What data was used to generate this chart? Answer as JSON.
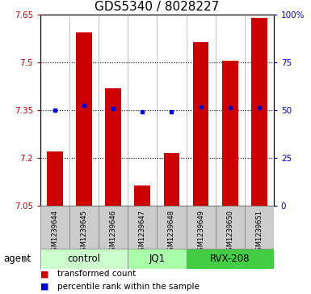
{
  "title": "GDS5340 / 8028227",
  "samples": [
    "GSM1239644",
    "GSM1239645",
    "GSM1239646",
    "GSM1239647",
    "GSM1239648",
    "GSM1239649",
    "GSM1239650",
    "GSM1239651"
  ],
  "bar_values": [
    7.22,
    7.595,
    7.42,
    7.115,
    7.215,
    7.565,
    7.505,
    7.64
  ],
  "percentile_values": [
    7.35,
    7.365,
    7.355,
    7.345,
    7.345,
    7.36,
    7.358,
    7.358
  ],
  "bar_color": "#cc0000",
  "percentile_color": "#0000cc",
  "ymin": 7.05,
  "ymax": 7.65,
  "yticks": [
    7.05,
    7.2,
    7.35,
    7.5,
    7.65
  ],
  "ytick_labels": [
    "7.05",
    "7.2",
    "7.35",
    "7.5",
    "7.65"
  ],
  "right_yticks": [
    0,
    25,
    50,
    75,
    100
  ],
  "right_ytick_labels": [
    "0",
    "25",
    "50",
    "75",
    "100%"
  ],
  "groups": [
    {
      "label": "control",
      "indices": [
        0,
        1,
        2
      ],
      "color": "#ccffcc"
    },
    {
      "label": "JQ1",
      "indices": [
        3,
        4
      ],
      "color": "#aaffaa"
    },
    {
      "label": "RVX-208",
      "indices": [
        5,
        6,
        7
      ],
      "color": "#44cc44"
    }
  ],
  "agent_label": "agent",
  "legend_bar_label": "transformed count",
  "legend_point_label": "percentile rank within the sample",
  "bg_color": "#ffffff",
  "plot_bg_color": "#ffffff",
  "tick_color_left": "#cc0000",
  "tick_color_right": "#0000cc",
  "title_fontsize": 11,
  "axis_fontsize": 7.5,
  "sample_fontsize": 6,
  "group_fontsize": 8.5,
  "legend_fontsize": 7.5,
  "agent_fontsize": 8.5,
  "sample_box_color": "#cccccc",
  "sample_box_edge": "#888888"
}
